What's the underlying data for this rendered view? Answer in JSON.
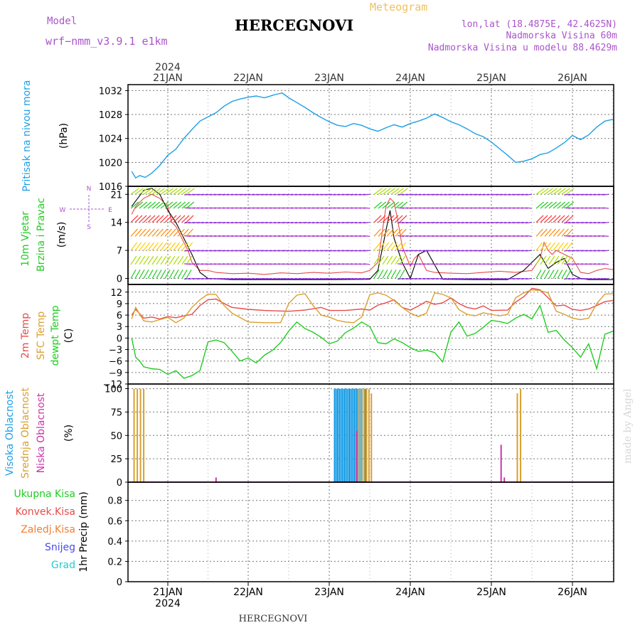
{
  "header": {
    "model_label": "Model",
    "model_name": "wrf−nmm_v3.9.1  e1km",
    "title": "HERCEGNOVI",
    "meteogram_label": "Meteogram",
    "lonlat": "lon,lat (18.4875E, 42.4625N)",
    "elevation": "Nadmorska Visina 60m",
    "model_elevation": "Nadmorska Visina u modelu 88.4629m"
  },
  "footer": {
    "station": "HERCEGNOVI",
    "credit": "made by Angel"
  },
  "colors": {
    "pressure": "#1e9fe6",
    "temp2m": "#e84a4a",
    "sfc_temp": "#d9a030",
    "dewpoint": "#22cc22",
    "high_cloud": "#1e9fe6",
    "mid_cloud": "#d9a030",
    "low_cloud": "#cc33aa",
    "wind_speed": "#e84a4a",
    "gust": "#000000",
    "purple": "#aa55cc",
    "grid": "#777777"
  },
  "chart_data": [
    {
      "type": "line",
      "panel": "pressure",
      "ylabel": [
        "Pritisak na nivou mora",
        "(hPa)"
      ],
      "ylim": [
        1016,
        1033
      ],
      "yticks": [
        "1032",
        "1028",
        "1024",
        "1020",
        "1016"
      ],
      "top_axis": {
        "year": "2024",
        "days": [
          "21JAN",
          "22JAN",
          "23JAN",
          "24JAN",
          "25JAN",
          "26JAN"
        ]
      },
      "x_day_positions": [
        21,
        22,
        23,
        24,
        25,
        26
      ],
      "xlim": [
        20.55,
        26.5
      ],
      "series": [
        {
          "x": [
            20.55,
            20.6,
            20.65,
            20.72,
            20.8,
            20.9,
            21.0,
            21.1,
            21.2,
            21.3,
            21.4,
            21.5,
            21.6,
            21.7,
            21.8,
            21.9,
            22.0,
            22.1,
            22.2,
            22.3,
            22.35,
            22.42,
            22.5,
            22.6,
            22.7,
            22.8,
            22.9,
            23.0,
            23.1,
            23.2,
            23.3,
            23.4,
            23.5,
            23.6,
            23.7,
            23.8,
            23.9,
            24.0,
            24.1,
            24.2,
            24.3,
            24.4,
            24.5,
            24.6,
            24.7,
            24.8,
            24.9,
            25.0,
            25.1,
            25.2,
            25.3,
            25.4,
            25.5,
            25.6,
            25.7,
            25.8,
            25.9,
            26.0,
            26.1,
            26.2,
            26.3,
            26.4,
            26.5
          ],
          "values": [
            1018.5,
            1017.4,
            1017.8,
            1017.5,
            1018.2,
            1019.5,
            1021.2,
            1022.2,
            1024.0,
            1025.5,
            1026.9,
            1027.6,
            1028.3,
            1029.4,
            1030.2,
            1030.6,
            1030.9,
            1031.1,
            1030.8,
            1031.2,
            1031.4,
            1031.6,
            1030.8,
            1030.0,
            1029.2,
            1028.3,
            1027.5,
            1026.8,
            1026.2,
            1026.0,
            1026.5,
            1026.2,
            1025.6,
            1025.2,
            1025.8,
            1026.3,
            1025.9,
            1026.5,
            1026.9,
            1027.4,
            1028.1,
            1027.5,
            1026.8,
            1026.3,
            1025.6,
            1024.8,
            1024.3,
            1023.4,
            1022.3,
            1021.2,
            1020.0,
            1020.2,
            1020.6,
            1021.3,
            1021.6,
            1022.4,
            1023.3,
            1024.5,
            1023.8,
            1024.6,
            1025.9,
            1026.9,
            1027.2
          ]
        }
      ]
    },
    {
      "type": "line",
      "panel": "wind",
      "ylabel": [
        "10m Vjetar",
        "Brzina i Pravac",
        "(m/s)"
      ],
      "compass": [
        "N",
        "S",
        "W",
        "E"
      ],
      "ylim": [
        -1.5,
        23
      ],
      "yticks": [
        "21",
        "14",
        "7",
        "0"
      ],
      "xlim": [
        20.55,
        26.5
      ],
      "series": [
        {
          "name": "speed",
          "x": [
            20.55,
            20.6,
            20.7,
            20.8,
            20.9,
            21.0,
            21.05,
            21.1,
            21.2,
            21.25,
            21.3,
            21.4,
            21.5,
            21.6,
            21.8,
            22.0,
            22.2,
            22.4,
            22.6,
            22.8,
            23.0,
            23.2,
            23.4,
            23.5,
            23.6,
            23.7,
            23.75,
            23.8,
            23.85,
            23.9,
            24.0,
            24.05,
            24.1,
            24.2,
            24.3,
            24.5,
            24.7,
            24.9,
            25.1,
            25.3,
            25.5,
            25.6,
            25.65,
            25.7,
            25.75,
            25.8,
            25.9,
            26.0,
            26.1,
            26.2,
            26.3,
            26.4,
            26.5
          ],
          "values": [
            16,
            18,
            20,
            21,
            20,
            18,
            14,
            13,
            9,
            7,
            4,
            2,
            2,
            1.5,
            1.2,
            1.3,
            1.0,
            1.4,
            1.2,
            1.5,
            1.3,
            1.6,
            1.4,
            2,
            4,
            18,
            20,
            19,
            14,
            8,
            3,
            5,
            6,
            2,
            1.5,
            1.3,
            1.2,
            1.5,
            1.8,
            1.5,
            2,
            5,
            9,
            7,
            6,
            7,
            6,
            5,
            1.5,
            1.2,
            2,
            2.5,
            2.2
          ]
        },
        {
          "name": "gust",
          "x": [
            20.55,
            20.7,
            20.8,
            20.9,
            21.0,
            21.1,
            21.2,
            21.3,
            21.4,
            21.5,
            21.8,
            22.0,
            22.5,
            23.0,
            23.5,
            23.6,
            23.7,
            23.75,
            23.8,
            23.9,
            24.0,
            24.1,
            24.2,
            24.4,
            24.8,
            25.2,
            25.4,
            25.5,
            25.6,
            25.7,
            25.8,
            25.9,
            26.0,
            26.1,
            26.2,
            26.5
          ],
          "values": [
            18,
            22,
            22.5,
            21,
            17,
            14,
            10,
            6,
            1.5,
            0,
            -0.3,
            -0.3,
            -0.3,
            -0.3,
            -0.2,
            2,
            12,
            17,
            10,
            4,
            0,
            6,
            7,
            -0.2,
            -0.3,
            -0.3,
            2,
            4,
            6,
            2.5,
            4,
            5,
            1,
            0,
            -0.3,
            -0.3
          ]
        }
      ]
    },
    {
      "type": "line",
      "panel": "temperature",
      "ylabel": [
        "2m Temp",
        "SFC Temp",
        "dewpt Temp",
        "(C)"
      ],
      "ylim": [
        -12,
        14
      ],
      "yticks": [
        "12",
        "9",
        "6",
        "3",
        "0",
        "−3",
        "−6",
        "−9",
        "−12"
      ],
      "xlim": [
        20.55,
        26.5
      ],
      "series": [
        {
          "name": "2m Temp",
          "x": [
            20.55,
            20.6,
            20.7,
            20.8,
            20.9,
            21.0,
            21.1,
            21.2,
            21.3,
            21.4,
            21.5,
            21.6,
            21.7,
            21.8,
            22.0,
            22.2,
            22.5,
            22.7,
            22.9,
            23.0,
            23.2,
            23.4,
            23.5,
            23.6,
            23.7,
            23.8,
            23.9,
            24.0,
            24.1,
            24.2,
            24.3,
            24.4,
            24.5,
            24.6,
            24.7,
            24.8,
            24.9,
            25.0,
            25.2,
            25.3,
            25.4,
            25.5,
            25.6,
            25.7,
            25.8,
            25.9,
            26.0,
            26.1,
            26.2,
            26.3,
            26.4,
            26.5
          ],
          "values": [
            6,
            7.5,
            5.2,
            5.5,
            5.0,
            5.6,
            5.3,
            5.8,
            6.2,
            8.5,
            10,
            10.2,
            9,
            8,
            7.5,
            7.2,
            7.0,
            7.3,
            8,
            7.2,
            7.2,
            7.6,
            7.3,
            8.6,
            9.2,
            10,
            8,
            7.3,
            8.4,
            9.6,
            8.8,
            9.2,
            10.5,
            9,
            8,
            7.6,
            8.4,
            7.2,
            7.3,
            9.4,
            10.8,
            13,
            12.6,
            10.5,
            8.4,
            8.6,
            7.5,
            7.2,
            7.6,
            8.5,
            9.5,
            9.8
          ]
        },
        {
          "name": "SFC Temp",
          "x": [
            20.55,
            20.6,
            20.7,
            20.8,
            20.9,
            21.0,
            21.1,
            21.2,
            21.3,
            21.4,
            21.5,
            21.6,
            21.7,
            21.8,
            22.0,
            22.2,
            22.4,
            22.5,
            22.6,
            22.7,
            22.8,
            22.9,
            23.0,
            23.1,
            23.2,
            23.3,
            23.4,
            23.5,
            23.6,
            23.7,
            23.8,
            23.9,
            24.0,
            24.1,
            24.2,
            24.3,
            24.4,
            24.5,
            24.6,
            24.7,
            24.8,
            24.9,
            25.0,
            25.1,
            25.2,
            25.3,
            25.4,
            25.5,
            25.6,
            25.7,
            25.8,
            25.9,
            26.0,
            26.1,
            26.2,
            26.3,
            26.4,
            26.5
          ],
          "values": [
            5,
            8,
            4.5,
            4.2,
            4.8,
            5.4,
            4,
            5.2,
            8,
            10,
            11.5,
            11.4,
            8.5,
            6.5,
            4.2,
            4.0,
            4.0,
            9,
            11.2,
            11.6,
            8.5,
            6,
            5.5,
            4.6,
            4.2,
            4.0,
            5.5,
            11.3,
            11.8,
            11.2,
            9.8,
            8,
            6.5,
            5.6,
            6.5,
            11.8,
            11.4,
            10.5,
            7.4,
            6.2,
            5.8,
            6.6,
            6.2,
            5.8,
            6.2,
            10.5,
            11.8,
            12.6,
            12.4,
            11.8,
            7,
            6.2,
            5.2,
            4.8,
            5.2,
            9,
            11.5,
            11.6
          ]
        },
        {
          "name": "dewpt Temp",
          "x": [
            20.55,
            20.6,
            20.65,
            20.7,
            20.8,
            20.9,
            21.0,
            21.1,
            21.2,
            21.3,
            21.4,
            21.5,
            21.6,
            21.7,
            21.8,
            21.9,
            22.0,
            22.1,
            22.2,
            22.3,
            22.4,
            22.5,
            22.6,
            22.7,
            22.8,
            22.9,
            23.0,
            23.1,
            23.2,
            23.3,
            23.4,
            23.5,
            23.6,
            23.7,
            23.8,
            23.9,
            24.0,
            24.1,
            24.2,
            24.3,
            24.4,
            24.5,
            24.6,
            24.7,
            24.8,
            24.9,
            25.0,
            25.1,
            25.2,
            25.3,
            25.4,
            25.5,
            25.6,
            25.7,
            25.8,
            25.9,
            26.0,
            26.1,
            26.2,
            26.3,
            26.4,
            26.5
          ],
          "values": [
            0,
            -5,
            -6,
            -7.5,
            -8,
            -8.2,
            -9.5,
            -8.5,
            -10.5,
            -9.8,
            -8.5,
            -1,
            -0.5,
            -1.2,
            -3.5,
            -6,
            -5.2,
            -6.5,
            -4.5,
            -3.2,
            -1.2,
            1.8,
            4.2,
            2.5,
            1.5,
            0.2,
            -1.5,
            -0.8,
            1.4,
            2.6,
            4.2,
            3,
            -1.2,
            -1.5,
            -0.2,
            -1.2,
            -2.5,
            -3.5,
            -3.2,
            -3.8,
            -6.2,
            1.5,
            4.2,
            0.5,
            1.2,
            2.8,
            4.6,
            4.3,
            3.8,
            5.2,
            6.2,
            5,
            8.5,
            1.5,
            2,
            -0.5,
            -2.5,
            -5,
            -1.5,
            -8,
            1,
            1.8
          ]
        }
      ]
    },
    {
      "type": "bar",
      "panel": "cloud",
      "ylabel": [
        "Visoka Oblacnost",
        "Srednja Oblacnost",
        "Niska Oblacnost",
        "(%)"
      ],
      "ylim": [
        0,
        105
      ],
      "yticks": [
        "100",
        "75",
        "50",
        "25",
        "0"
      ],
      "xlim": [
        20.55,
        26.5
      ],
      "series": [
        {
          "name": "Visoka Oblacnost",
          "x": [
            23.07,
            23.1,
            23.13,
            23.16,
            23.19,
            23.22,
            23.25,
            23.28,
            23.31,
            23.34,
            23.37,
            23.4,
            23.44
          ],
          "values": [
            100,
            100,
            100,
            100,
            100,
            100,
            100,
            100,
            100,
            100,
            100,
            100,
            100
          ]
        },
        {
          "name": "Srednja Oblacnost",
          "x": [
            20.58,
            20.62,
            20.66,
            20.7,
            23.37,
            23.4,
            23.43,
            23.46,
            23.49,
            23.52,
            25.32,
            25.36
          ],
          "values": [
            100,
            100,
            100,
            100,
            100,
            100,
            100,
            100,
            100,
            95,
            95,
            100
          ]
        },
        {
          "name": "Niska Oblacnost",
          "x": [
            21.6,
            23.34,
            25.12,
            25.16
          ],
          "values": [
            5,
            55,
            40,
            5
          ]
        }
      ]
    },
    {
      "type": "bar",
      "panel": "precip",
      "ylabel": [
        "1hr Precip (mm)"
      ],
      "legend": [
        "Ukupna Kisa",
        "Konvek.Kisa",
        "Zaledj.Kisa",
        "Snijeg",
        "Grad"
      ],
      "ylim": [
        0,
        0.98
      ],
      "yticks": [
        "0.8",
        "0.6",
        "0.4",
        "0.2",
        "0"
      ],
      "xlim": [
        20.55,
        26.5
      ],
      "bottom_axis": {
        "days": [
          "21JAN",
          "22JAN",
          "23JAN",
          "24JAN",
          "25JAN",
          "26JAN"
        ],
        "year": "2024"
      },
      "series": []
    }
  ]
}
